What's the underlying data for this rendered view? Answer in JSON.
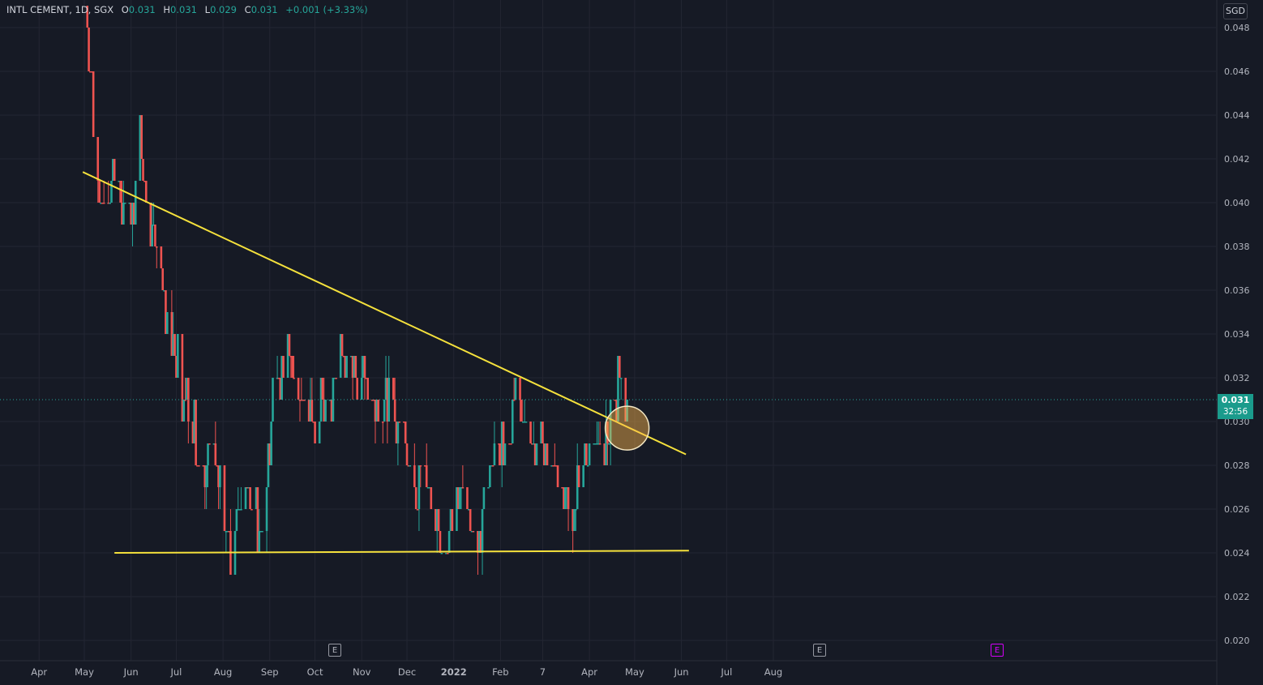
{
  "legend": {
    "symbol": "INTL CEMENT, 1D, SGX",
    "o_label": "O",
    "o_value": "0.031",
    "h_label": "H",
    "h_value": "0.031",
    "l_label": "L",
    "l_value": "0.029",
    "c_label": "C",
    "c_value": "0.031",
    "change": "+0.001 (+3.33%)"
  },
  "currency": "SGD",
  "last_price": {
    "value": "0.031",
    "countdown": "32:56"
  },
  "colors": {
    "background": "#161a25",
    "grid": "#232632",
    "up": "#26a69a",
    "down": "#ef5350",
    "trendline": "#f5e13c"
  },
  "events": [
    {
      "label": "E",
      "kind": "past"
    },
    {
      "label": "E",
      "kind": "past"
    },
    {
      "label": "E",
      "kind": "upcoming"
    }
  ],
  "chart_data": {
    "type": "candlestick",
    "ylim": [
      0.0195,
      0.049
    ],
    "y_ticks": [
      "0.048",
      "0.046",
      "0.044",
      "0.042",
      "0.040",
      "0.038",
      "0.036",
      "0.034",
      "0.032",
      "0.030",
      "0.028",
      "0.026",
      "0.024",
      "0.022",
      "0.020"
    ],
    "x_ticks": [
      "Apr",
      "May",
      "Jun",
      "Jul",
      "Aug",
      "Sep",
      "Oct",
      "Nov",
      "Dec",
      "2022",
      "Feb",
      "7",
      "Apr",
      "May",
      "Jun",
      "Jul",
      "Aug"
    ],
    "x_tick_dates": [
      "2021-04-01",
      "2021-05-01",
      "2021-06-01",
      "2021-07-01",
      "2021-08-01",
      "2021-09-01",
      "2021-10-01",
      "2021-11-01",
      "2021-12-01",
      "2022-01-01",
      "2022-02-01",
      "2022-03-01",
      "2022-04-01",
      "2022-05-01",
      "2022-06-01",
      "2022-07-01",
      "2022-08-01"
    ],
    "daily_close_path": [
      [
        "2021-05-01",
        0.049
      ],
      [
        "2021-05-05",
        0.046
      ],
      [
        "2021-05-08",
        0.042
      ],
      [
        "2021-05-11",
        0.04
      ],
      [
        "2021-05-15",
        0.039
      ],
      [
        "2021-05-20",
        0.041
      ],
      [
        "2021-05-28",
        0.04
      ],
      [
        "2021-06-03",
        0.04
      ],
      [
        "2021-06-07",
        0.043
      ],
      [
        "2021-06-09",
        0.041
      ],
      [
        "2021-06-14",
        0.039
      ],
      [
        "2021-06-20",
        0.037
      ],
      [
        "2021-06-25",
        0.035
      ],
      [
        "2021-07-01",
        0.033
      ],
      [
        "2021-07-06",
        0.031
      ],
      [
        "2021-07-12",
        0.03
      ],
      [
        "2021-07-18",
        0.028
      ],
      [
        "2021-07-25",
        0.029
      ],
      [
        "2021-07-30",
        0.027
      ],
      [
        "2021-08-06",
        0.024
      ],
      [
        "2021-08-12",
        0.026
      ],
      [
        "2021-08-20",
        0.026
      ],
      [
        "2021-08-26",
        0.025
      ],
      [
        "2021-08-31",
        0.028
      ],
      [
        "2021-09-04",
        0.033
      ],
      [
        "2021-09-08",
        0.031
      ],
      [
        "2021-09-12",
        0.034
      ],
      [
        "2021-09-18",
        0.031
      ],
      [
        "2021-09-24",
        0.031
      ],
      [
        "2021-10-01",
        0.029
      ],
      [
        "2021-10-06",
        0.031
      ],
      [
        "2021-10-12",
        0.031
      ],
      [
        "2021-10-18",
        0.033
      ],
      [
        "2021-10-25",
        0.032
      ],
      [
        "2021-10-31",
        0.032
      ],
      [
        "2021-11-08",
        0.031
      ],
      [
        "2021-11-16",
        0.031
      ],
      [
        "2021-11-24",
        0.03
      ],
      [
        "2021-12-01",
        0.029
      ],
      [
        "2021-12-06",
        0.027
      ],
      [
        "2021-12-12",
        0.028
      ],
      [
        "2021-12-20",
        0.025
      ],
      [
        "2021-12-24",
        0.024
      ],
      [
        "2021-12-30",
        0.026
      ],
      [
        "2022-01-06",
        0.027
      ],
      [
        "2022-01-12",
        0.025
      ],
      [
        "2022-01-16",
        0.024
      ],
      [
        "2022-01-21",
        0.026
      ],
      [
        "2022-01-28",
        0.029
      ],
      [
        "2022-02-04",
        0.029
      ],
      [
        "2022-02-10",
        0.031
      ],
      [
        "2022-02-14",
        0.031
      ],
      [
        "2022-02-20",
        0.029
      ],
      [
        "2022-02-26",
        0.029
      ],
      [
        "2022-03-04",
        0.028
      ],
      [
        "2022-03-10",
        0.028
      ],
      [
        "2022-03-16",
        0.027
      ],
      [
        "2022-03-22",
        0.026
      ],
      [
        "2022-03-28",
        0.028
      ],
      [
        "2022-04-03",
        0.029
      ],
      [
        "2022-04-09",
        0.029
      ],
      [
        "2022-04-14",
        0.029
      ],
      [
        "2022-04-18",
        0.031
      ],
      [
        "2022-04-22",
        0.032
      ],
      [
        "2022-04-26",
        0.03
      ],
      [
        "2022-04-27",
        0.031
      ]
    ],
    "trendlines": [
      {
        "name": "descending",
        "from": [
          "2021-04-30",
          0.0414
        ],
        "to": [
          "2022-06-04",
          0.0285
        ]
      },
      {
        "name": "support",
        "from": [
          "2021-05-21",
          0.024
        ],
        "to": [
          "2022-06-06",
          0.0241
        ]
      }
    ],
    "highlight": {
      "date": "2022-04-26",
      "value": 0.0297
    },
    "last_price_line": 0.031
  }
}
